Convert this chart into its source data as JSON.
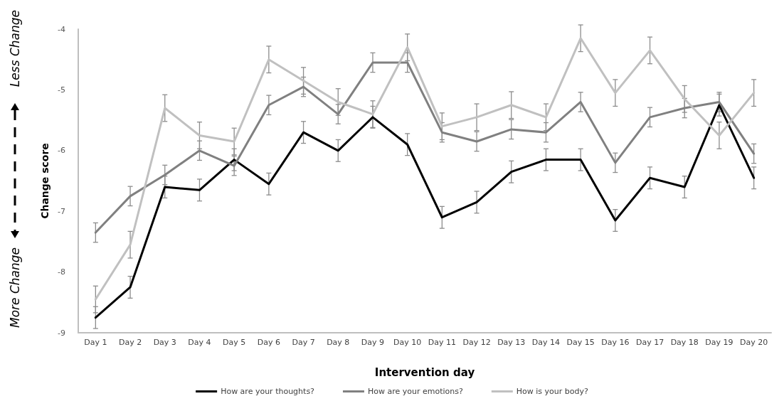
{
  "chart_data": {
    "type": "line",
    "xlabel": "Intervention day",
    "ylabel": "Change score",
    "annotations": [
      "Less Change",
      "More Change"
    ],
    "categories": [
      "Day 1",
      "Day 2",
      "Day 3",
      "Day 4",
      "Day 5",
      "Day 6",
      "Day 7",
      "Day 8",
      "Day 9",
      "Day 10",
      "Day 11",
      "Day 12",
      "Day 13",
      "Day 14",
      "Day 15",
      "Day 16",
      "Day 17",
      "Day 18",
      "Day 19",
      "Day 20"
    ],
    "series": [
      {
        "name": "How are your thoughts?",
        "color": "#000000",
        "values": [
          -8.75,
          -8.25,
          -6.6,
          -6.65,
          -6.15,
          -6.55,
          -5.7,
          -6.0,
          -5.45,
          -5.9,
          -7.1,
          -6.85,
          -6.35,
          -6.15,
          -6.15,
          -7.15,
          -6.45,
          -6.6,
          -5.25,
          -6.45
        ],
        "errors": [
          0.18,
          0.18,
          0.18,
          0.18,
          0.18,
          0.18,
          0.18,
          0.18,
          0.18,
          0.18,
          0.18,
          0.18,
          0.18,
          0.18,
          0.18,
          0.18,
          0.18,
          0.18,
          0.18,
          0.18
        ]
      },
      {
        "name": "How are your emotions?",
        "color": "#808080",
        "values": [
          -7.35,
          -6.75,
          -6.4,
          -6.0,
          -6.25,
          -5.25,
          -4.95,
          -5.4,
          -4.55,
          -4.55,
          -5.7,
          -5.85,
          -5.65,
          -5.7,
          -5.2,
          -6.2,
          -5.45,
          -5.3,
          -5.2,
          -6.05
        ],
        "errors": [
          0.16,
          0.16,
          0.16,
          0.16,
          0.16,
          0.16,
          0.16,
          0.16,
          0.16,
          0.16,
          0.16,
          0.16,
          0.16,
          0.16,
          0.16,
          0.16,
          0.16,
          0.16,
          0.16,
          0.16
        ]
      },
      {
        "name": "How is your body?",
        "color": "#c0c0c0",
        "values": [
          -8.45,
          -7.55,
          -5.3,
          -5.75,
          -5.85,
          -4.5,
          -4.85,
          -5.2,
          -5.4,
          -4.3,
          -5.6,
          -5.45,
          -5.25,
          -5.45,
          -4.15,
          -5.05,
          -4.35,
          -5.15,
          -5.75,
          -5.05
        ],
        "errors": [
          0.22,
          0.22,
          0.22,
          0.22,
          0.22,
          0.22,
          0.22,
          0.22,
          0.22,
          0.22,
          0.22,
          0.22,
          0.22,
          0.22,
          0.22,
          0.22,
          0.22,
          0.22,
          0.22,
          0.22
        ]
      }
    ],
    "ylim": [
      -9,
      -4
    ],
    "yticks": [
      -9,
      -8,
      -7,
      -6,
      -5,
      -4
    ],
    "grid": false,
    "legend": "bottom",
    "marker": "none",
    "line_style": "solid"
  }
}
